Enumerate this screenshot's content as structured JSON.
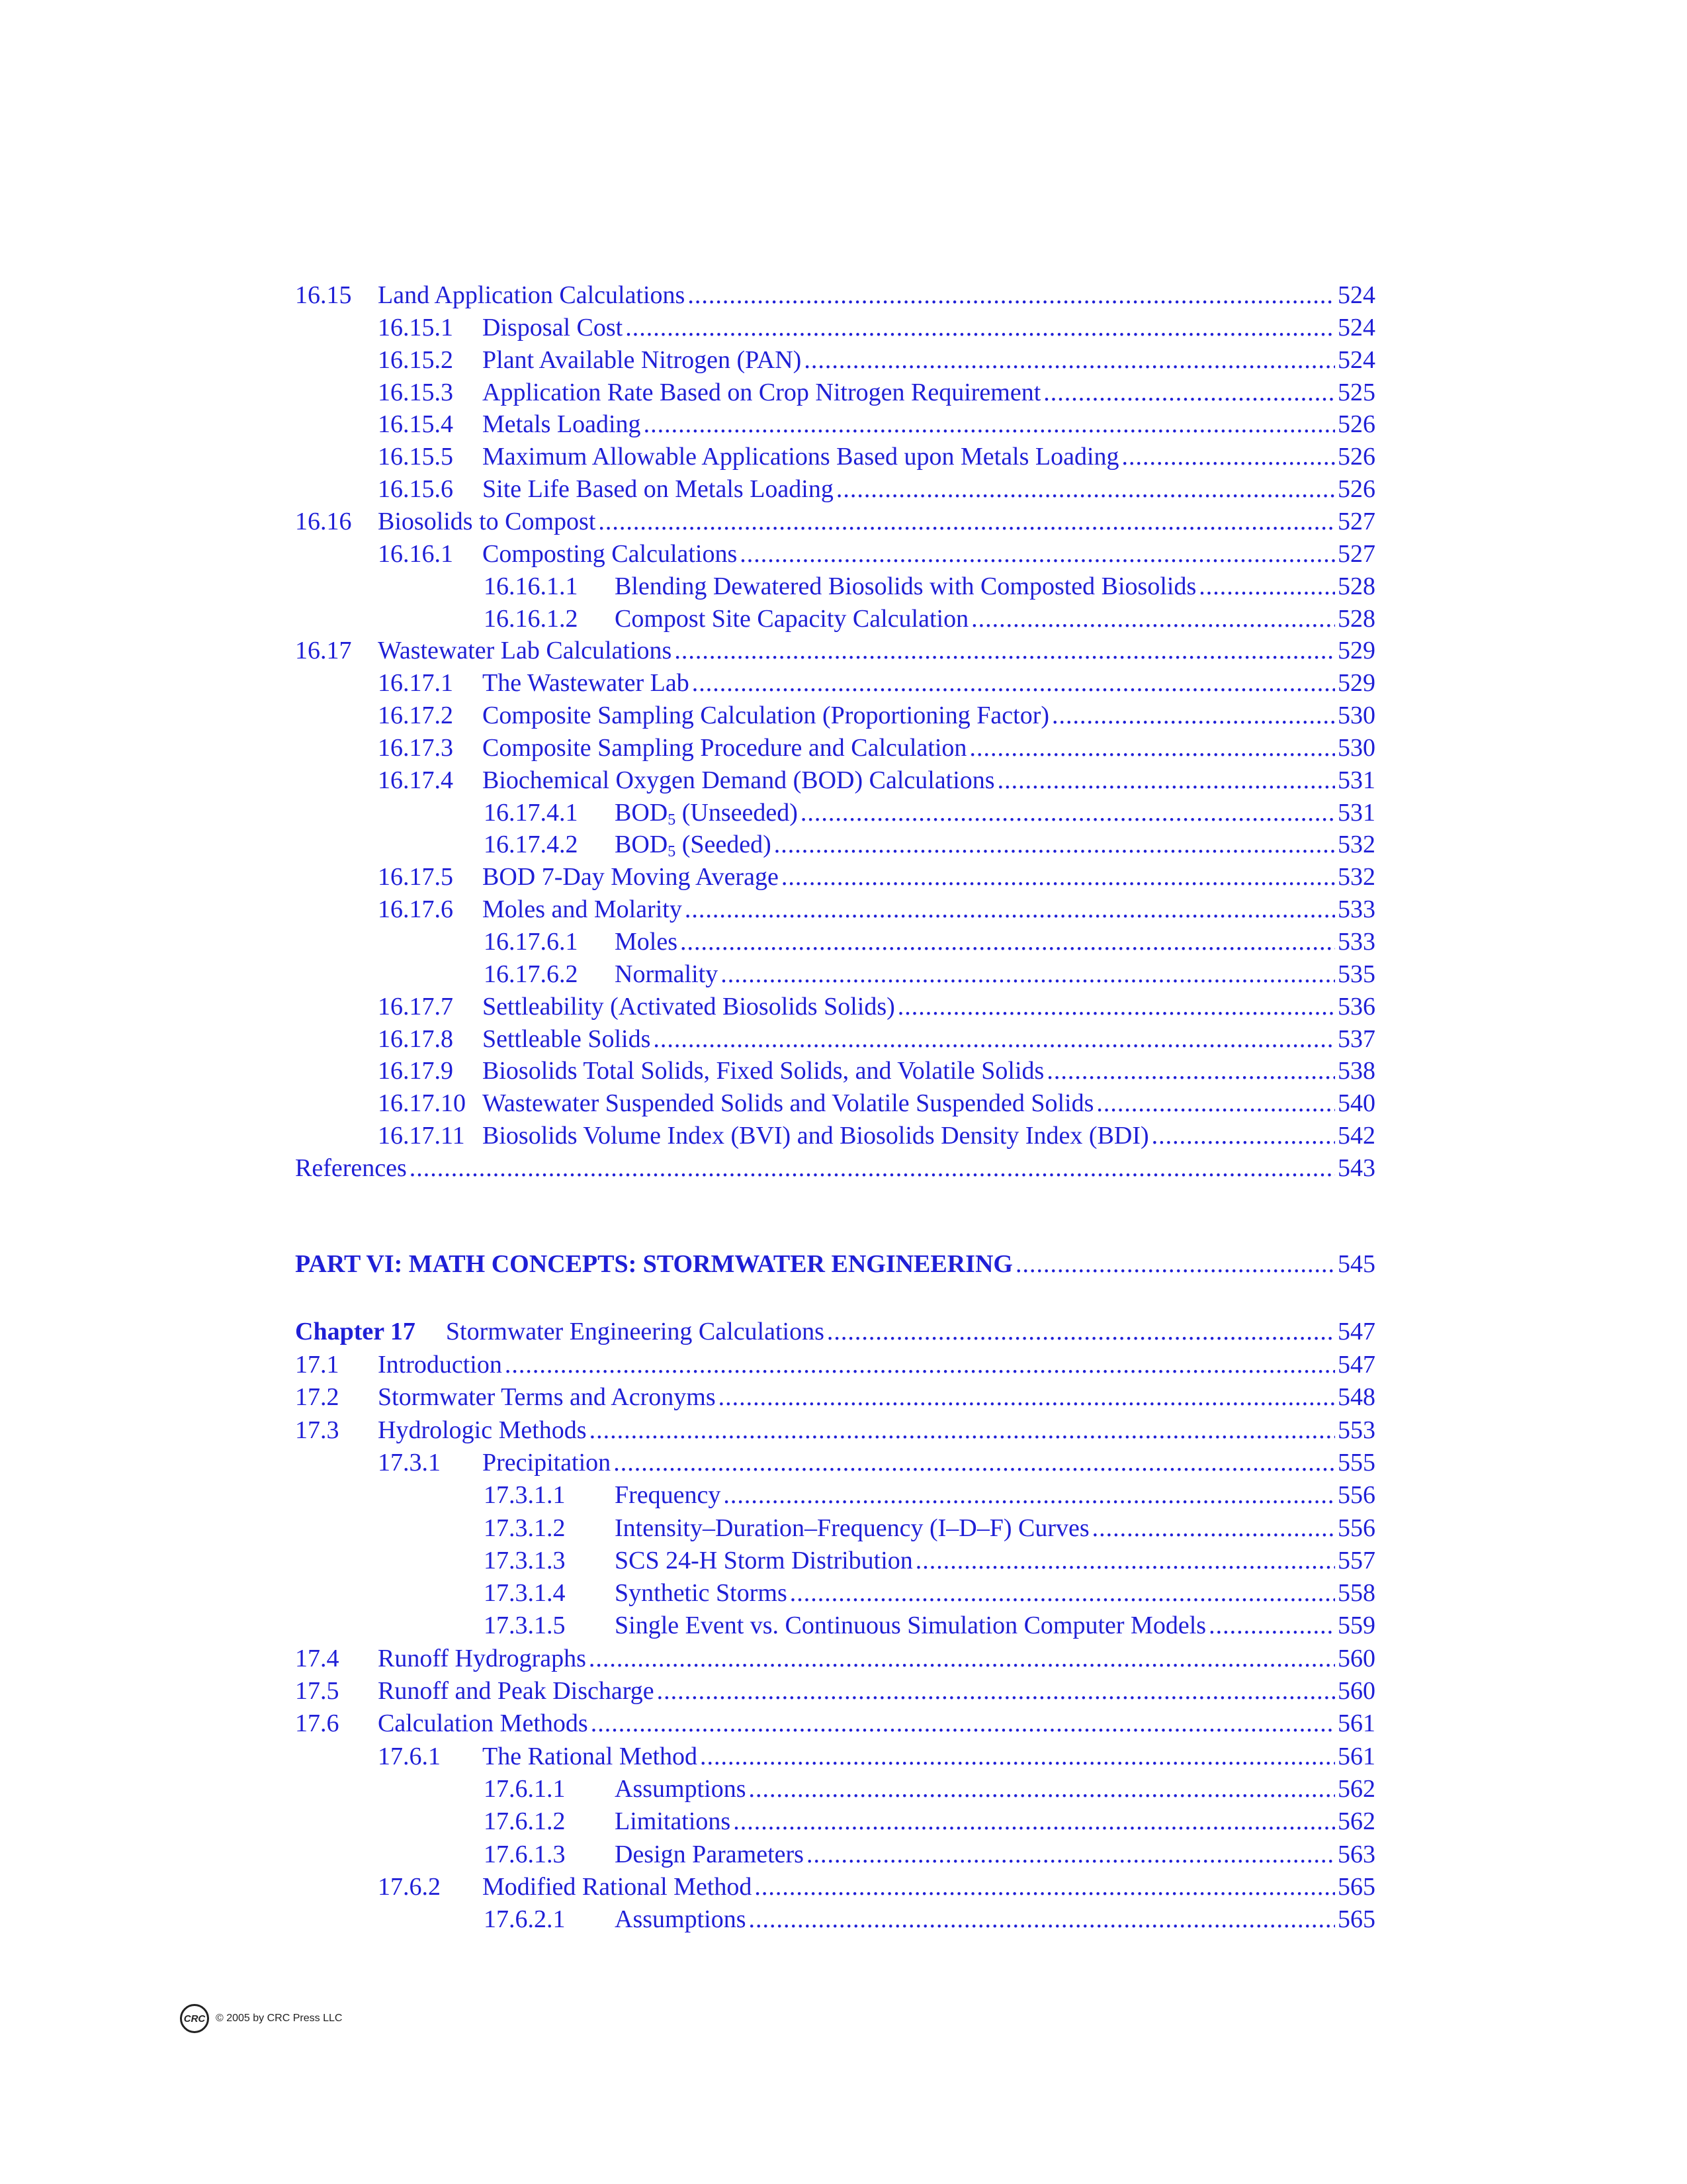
{
  "contents_a": [
    {
      "number": "16.15",
      "title": "Land Application Calculations",
      "page": 524
    },
    {
      "number": "16.15.1",
      "title": "Disposal Cost",
      "page": 524
    },
    {
      "number": "16.15.2",
      "title": "Plant Available Nitrogen (PAN)",
      "page": 524
    },
    {
      "number": "16.15.3",
      "title": "Application Rate Based on Crop Nitrogen Requirement",
      "page": 525
    },
    {
      "number": "16.15.4",
      "title": "Metals Loading",
      "page": 526
    },
    {
      "number": "16.15.5",
      "title": "Maximum Allowable Applications Based upon Metals Loading",
      "page": 526
    },
    {
      "number": "16.15.6",
      "title": "Site Life Based on Metals Loading",
      "page": 526
    },
    {
      "number": "16.16",
      "title": "Biosolids to Compost",
      "page": 527
    },
    {
      "number": "16.16.1",
      "title": "Composting Calculations",
      "page": 527
    },
    {
      "number": "16.16.1.1",
      "title": "Blending Dewatered Biosolids with Composted Biosolids",
      "page": 528
    },
    {
      "number": "16.16.1.2",
      "title": "Compost Site Capacity Calculation",
      "page": 528
    },
    {
      "number": "16.17",
      "title": "Wastewater Lab Calculations",
      "page": 529
    },
    {
      "number": "16.17.1",
      "title": "The Wastewater Lab",
      "page": 529
    },
    {
      "number": "16.17.2",
      "title": "Composite Sampling Calculation (Proportioning Factor)",
      "page": 530
    },
    {
      "number": "16.17.3",
      "title": "Composite Sampling Procedure and Calculation",
      "page": 530
    },
    {
      "number": "16.17.4",
      "title": "Biochemical Oxygen Demand (BOD) Calculations",
      "page": 531
    },
    {
      "number": "16.17.4.1",
      "title": "BOD",
      "title_sub": "5",
      "title_post": "(Unseeded)",
      "page": 531
    },
    {
      "number": "16.17.4.2",
      "title": "BOD",
      "title_sub": "5",
      "title_post": "(Seeded)",
      "page": 532
    },
    {
      "number": "16.17.5",
      "title": "BOD 7-Day Moving Average",
      "page": 532
    },
    {
      "number": "16.17.6",
      "title": "Moles and Molarity",
      "page": 533
    },
    {
      "number": "16.17.6.1",
      "title": "Moles",
      "page": 533
    },
    {
      "number": "16.17.6.2",
      "title": "Normality",
      "page": 535
    },
    {
      "number": "16.17.7",
      "title": "Settleability (Activated Biosolids Solids)",
      "page": 536
    },
    {
      "number": "16.17.8",
      "title": "Settleable Solids",
      "page": 537
    },
    {
      "number": "16.17.9",
      "title": "Biosolids Total Solids, Fixed Solids, and Volatile Solids",
      "page": 538
    },
    {
      "number": "16.17.10",
      "title": "Wastewater Suspended Solids and Volatile Suspended Solids",
      "page": 540
    },
    {
      "number": "16.17.11",
      "title": "Biosolids Volume Index (BVI) and Biosolids Density Index (BDI)",
      "page": 542
    }
  ],
  "references": {
    "title": "References",
    "page": 543
  },
  "part": {
    "title": "PART VI: MATH CONCEPTS: STORMWATER ENGINEERING",
    "page": 545
  },
  "chapter": {
    "label": "Chapter 17",
    "title": "Stormwater Engineering Calculations",
    "page": 547
  },
  "contents_b": [
    {
      "number": "17.1",
      "title": "Introduction",
      "page": 547
    },
    {
      "number": "17.2",
      "title": "Stormwater Terms and Acronyms",
      "page": 548
    },
    {
      "number": "17.3",
      "title": "Hydrologic Methods",
      "page": 553
    },
    {
      "number": "17.3.1",
      "title": "Precipitation",
      "page": 555
    },
    {
      "number": "17.3.1.1",
      "title": "Frequency",
      "page": 556
    },
    {
      "number": "17.3.1.2",
      "title": "Intensity–Duration–Frequency (I–D–F) Curves",
      "page": 556
    },
    {
      "number": "17.3.1.3",
      "title": "SCS 24-H Storm Distribution",
      "page": 557
    },
    {
      "number": "17.3.1.4",
      "title": "Synthetic Storms",
      "page": 558
    },
    {
      "number": "17.3.1.5",
      "title": "Single Event vs. Continuous Simulation Computer Models",
      "page": 559
    },
    {
      "number": "17.4",
      "title": "Runoff Hydrographs",
      "page": 560
    },
    {
      "number": "17.5",
      "title": "Runoff and Peak Discharge",
      "page": 560
    },
    {
      "number": "17.6",
      "title": "Calculation Methods",
      "page": 561
    },
    {
      "number": "17.6.1",
      "title": "The Rational Method",
      "page": 561
    },
    {
      "number": "17.6.1.1",
      "title": "Assumptions",
      "page": 562
    },
    {
      "number": "17.6.1.2",
      "title": "Limitations",
      "page": 562
    },
    {
      "number": "17.6.1.3",
      "title": "Design Parameters",
      "page": 563
    },
    {
      "number": "17.6.2",
      "title": "Modified Rational Method",
      "page": 565
    },
    {
      "number": "17.6.2.1",
      "title": "Assumptions",
      "page": 565
    }
  ],
  "footer": {
    "logo": "CRC",
    "text": "© 2005 by CRC Press LLC"
  }
}
